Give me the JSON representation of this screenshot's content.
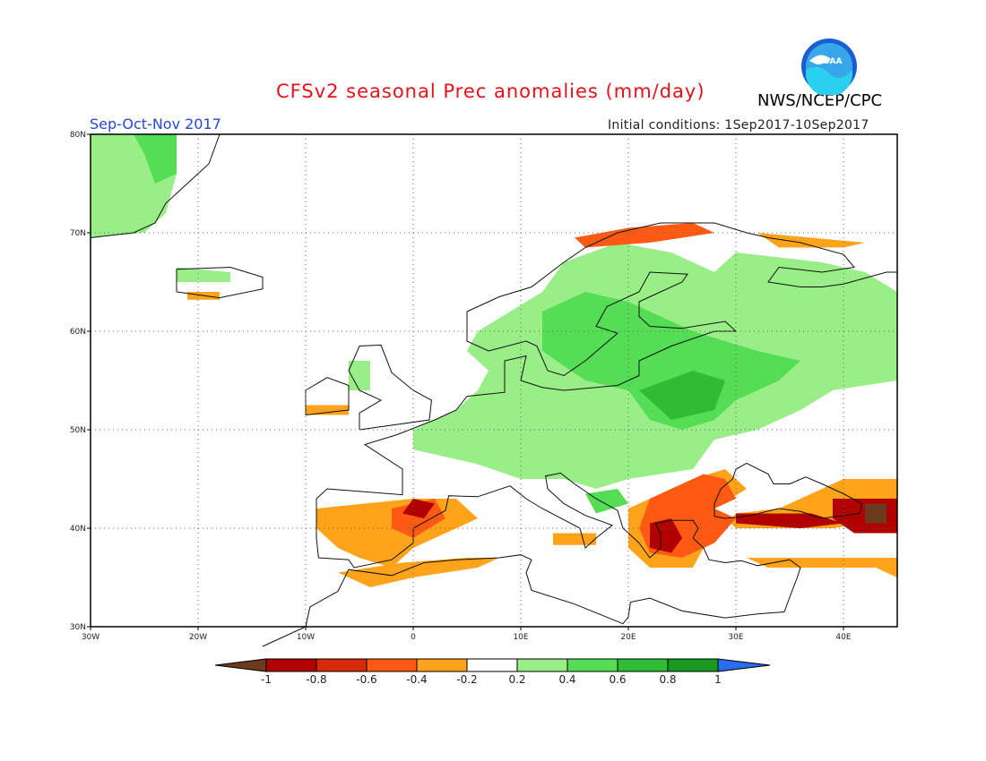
{
  "header": {
    "title": "CFSv2 seasonal Prec anomalies (mm/day)",
    "organization": "NWS/NCEP/CPC",
    "logo_text": "NOAA",
    "season": "Sep-Oct-Nov 2017",
    "initial_conditions": "Initial conditions: 1Sep2017-10Sep2017"
  },
  "map": {
    "region": "Europe",
    "lon_range": [
      -30,
      45
    ],
    "lat_range": [
      30,
      80
    ],
    "gridlines": "dotted",
    "lon_ticks": [
      "30W",
      "20W",
      "10W",
      "0",
      "10E",
      "20E",
      "30E",
      "40E"
    ],
    "lat_ticks": [
      "30N",
      "40N",
      "50N",
      "60N",
      "70N",
      "80N"
    ]
  },
  "colorbar": {
    "labels": [
      "-1",
      "-0.8",
      "-0.6",
      "-0.4",
      "-0.2",
      "0.2",
      "0.4",
      "0.6",
      "0.8",
      "1"
    ],
    "colors": [
      "#6b3a1f",
      "#b00000",
      "#d62a0a",
      "#ff5a14",
      "#ffa31a",
      "#ffffff",
      "#99ee88",
      "#55dd55",
      "#2fbb33",
      "#199a1f",
      "#2a6cf0"
    ]
  },
  "colors": {
    "title": "#e8101a",
    "season": "#2448d8",
    "wet_light": "#99ee88",
    "wet_mid": "#55dd55",
    "wet_dark": "#2fbb33",
    "dry_light": "#ffa31a",
    "dry_mid": "#ff5a14",
    "dry_dark": "#d62a0a",
    "dry_darkest": "#b00000",
    "dry_extreme": "#6b3a1f"
  }
}
